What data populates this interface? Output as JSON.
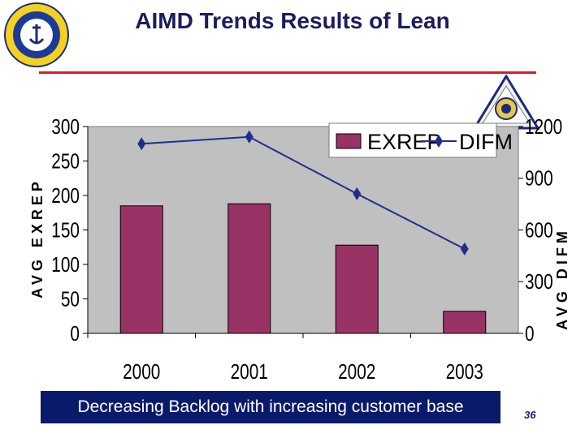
{
  "slide": {
    "title": "AIMD Trends Results of Lean",
    "caption": "Decreasing Backlog with increasing customer base",
    "page_number": "36"
  },
  "colors": {
    "title": "#1c1c5e",
    "rule": "#d0202a",
    "bar": "#993366",
    "line": "#1f2d8f",
    "plot_bg": "#c0c0c0",
    "caption_bg": "#0a1a6a"
  },
  "chart_data": {
    "type": "bar+line",
    "title": "",
    "categories": [
      "2000",
      "2001",
      "2002",
      "2003"
    ],
    "series": [
      {
        "name": "EXREP",
        "type": "bar",
        "axis": "left",
        "values": [
          185,
          188,
          128,
          32
        ]
      },
      {
        "name": "DIFM",
        "type": "line",
        "axis": "right",
        "values": [
          1100,
          1140,
          810,
          490
        ]
      }
    ],
    "ylabel_left": "AVG EXREP",
    "ylabel_right": "AVG DIFM",
    "ylim_left": [
      0,
      300
    ],
    "ylim_right": [
      0,
      1200
    ],
    "yticks_left": [
      "0",
      "50",
      "100",
      "150",
      "200",
      "250",
      "300"
    ],
    "yticks_right": [
      "0",
      "300",
      "600",
      "900",
      "1200"
    ],
    "legend": [
      "EXREP",
      "DIFM"
    ],
    "legend_position": "top-right",
    "grid": false
  }
}
